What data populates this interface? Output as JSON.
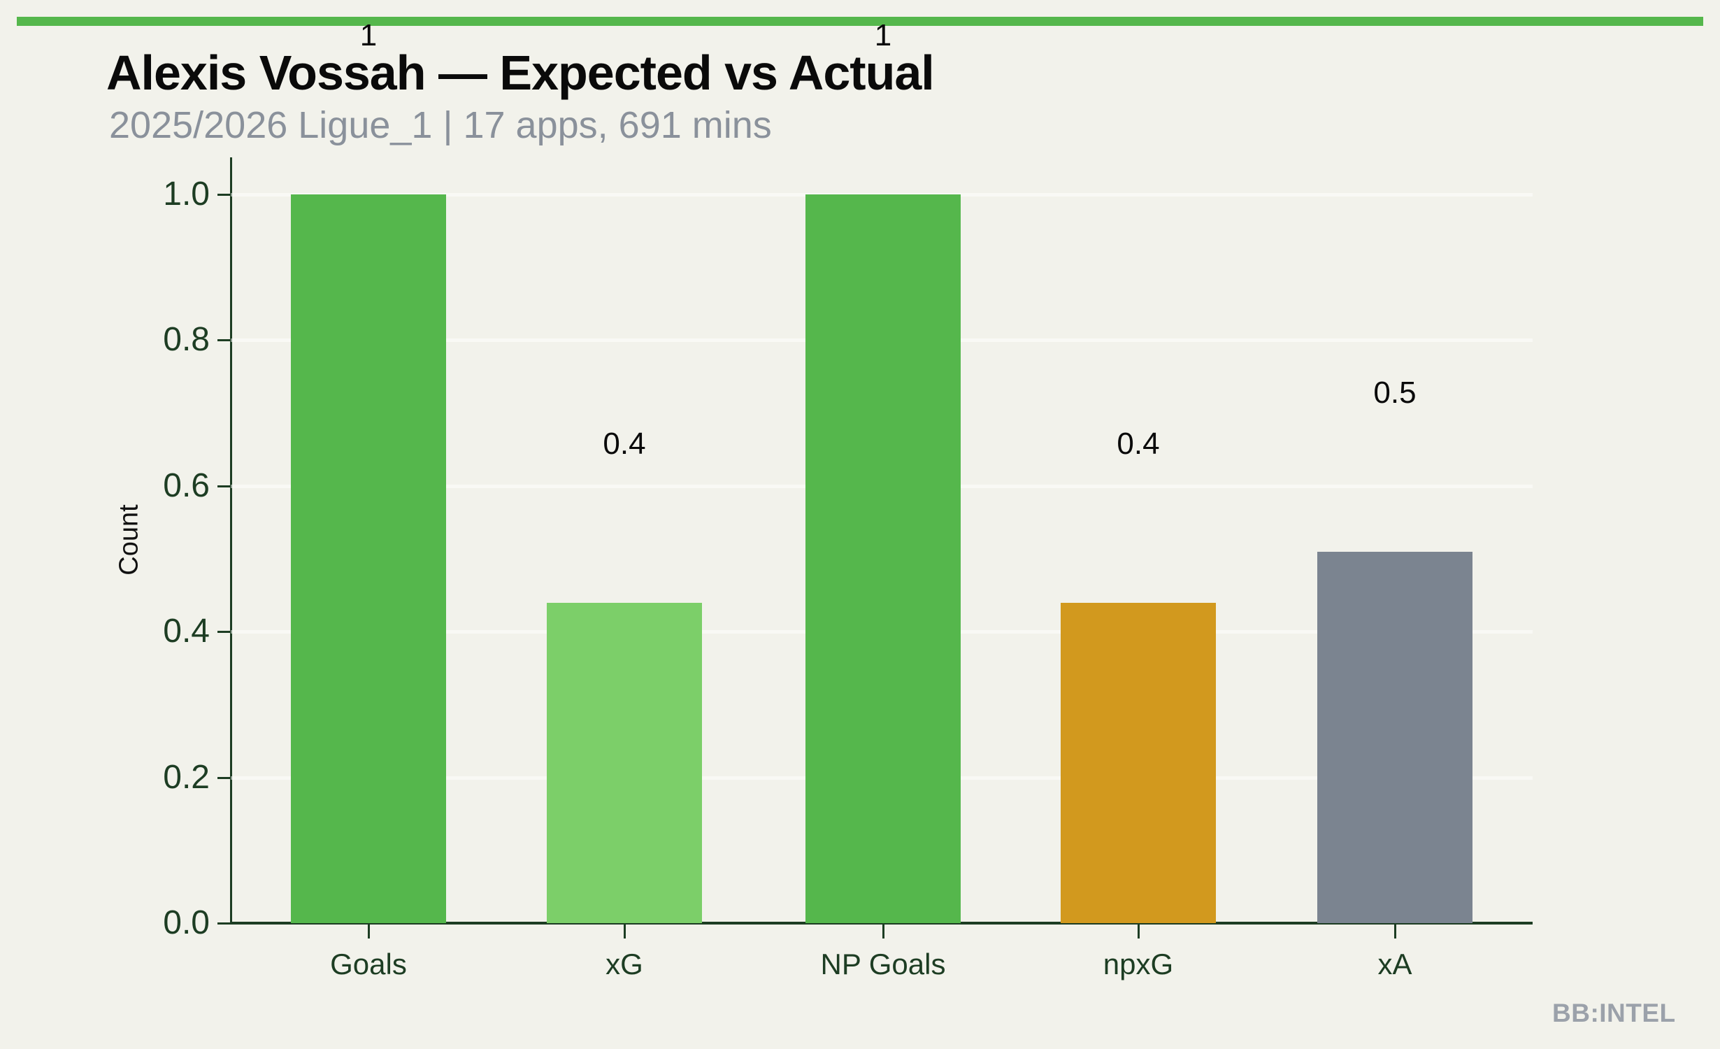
{
  "header": {
    "title": "Alexis Vossah — Expected vs Actual",
    "subtitle": "2025/2026 Ligue_1 | 17 apps, 691 mins"
  },
  "watermark": "BB:INTEL",
  "colors": {
    "background": "#F2F2EB",
    "accent_strip": "#55B74C",
    "axis_dark_green": "#1D3D23",
    "subtitle_gray": "#8A919B",
    "watermark_gray": "#9BA1AA",
    "gridline": "rgba(255,255,255,0.5)"
  },
  "chart_data": {
    "type": "bar",
    "title": "Alexis Vossah — Expected vs Actual",
    "subtitle": "2025/2026 Ligue_1 | 17 apps, 691 mins",
    "categories": [
      "Goals",
      "xG",
      "NP Goals",
      "npxG",
      "xA"
    ],
    "values": [
      1.0,
      0.44,
      1.0,
      0.44,
      0.51
    ],
    "bar_labels": [
      "1",
      "0.4",
      "1",
      "0.4",
      "0.5"
    ],
    "bar_colors": [
      "#55B74C",
      "#7CCF69",
      "#55B74C",
      "#D2991E",
      "#7B8490"
    ],
    "xlabel": "",
    "ylabel": "Count",
    "ylim": [
      0,
      1.05
    ],
    "yticks": [
      0.0,
      0.2,
      0.4,
      0.6,
      0.8,
      1.0
    ],
    "ytick_labels": [
      "0.0",
      "0.2",
      "0.4",
      "0.6",
      "0.8",
      "1.0"
    ],
    "grid": "horizontal-white",
    "legend": "none"
  }
}
